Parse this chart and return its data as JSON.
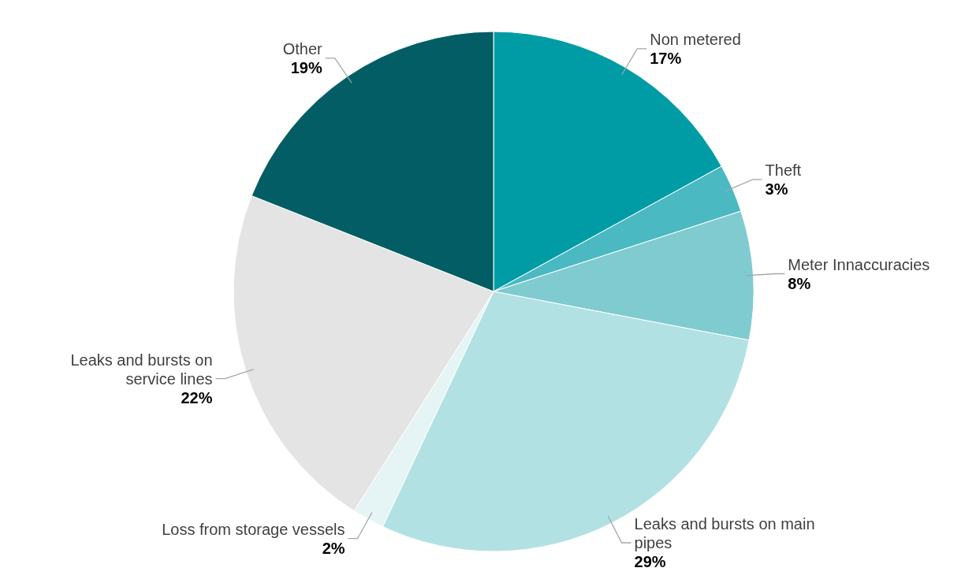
{
  "chart_data": {
    "type": "pie",
    "categories": [
      "Non metered",
      "Theft",
      "Meter Innaccuracies",
      "Leaks and bursts on main pipes",
      "Loss from storage vessels",
      "Leaks and bursts on service lines",
      "Other"
    ],
    "values": [
      17,
      3,
      8,
      29,
      2,
      22,
      19
    ],
    "colors": [
      "#009ca6",
      "#4ab9c1",
      "#7fcbd0",
      "#b2e1e3",
      "#e5f4f5",
      "#e4e4e4",
      "#025e64"
    ],
    "value_labels": [
      "17%",
      "3%",
      "8%",
      "29%",
      "2%",
      "22%",
      "19%"
    ]
  }
}
